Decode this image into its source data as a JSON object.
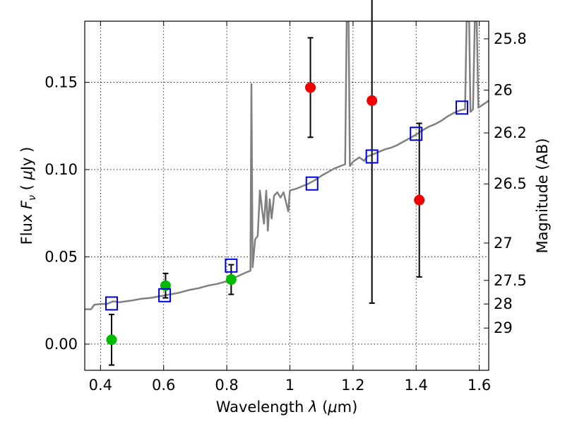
{
  "chart_data": {
    "type": "scatter",
    "xlabel": "Wavelength  λ (μm)",
    "ylabel": "Flux  F_ν  ( μJy )",
    "ylabel_parts": {
      "prefix": "Flux  ",
      "symbol": "F",
      "subscript": "ν",
      "open": "  ( ",
      "mu": "μ",
      "unit": "Jy )"
    },
    "xlabel_parts": {
      "prefix": "Wavelength  ",
      "symbol": "λ",
      "open": " (",
      "mu": "μ",
      "unit": "m)"
    },
    "right_ylabel": "Magnitude (AB)",
    "xlim": [
      0.35,
      1.63
    ],
    "ylim": [
      -0.015,
      0.185
    ],
    "grid": true,
    "x_ticks": [
      {
        "value": 0.4,
        "label": "0.4"
      },
      {
        "value": 0.6,
        "label": "0.6"
      },
      {
        "value": 0.8,
        "label": "0.8"
      },
      {
        "value": 1.0,
        "label": "1"
      },
      {
        "value": 1.2,
        "label": "1.2"
      },
      {
        "value": 1.4,
        "label": "1.4"
      },
      {
        "value": 1.6,
        "label": "1.6"
      }
    ],
    "y_ticks": [
      {
        "value": 0.0,
        "label": "0.00"
      },
      {
        "value": 0.05,
        "label": "0.05"
      },
      {
        "value": 0.1,
        "label": "0.10"
      },
      {
        "value": 0.15,
        "label": "0.15"
      }
    ],
    "right_ticks": [
      {
        "label": "25.8",
        "flux": 0.1749
      },
      {
        "label": "26",
        "flux": 0.1455
      },
      {
        "label": "26.2",
        "flux": 0.121
      },
      {
        "label": "26.5",
        "flux": 0.0918
      },
      {
        "label": "27",
        "flux": 0.0579
      },
      {
        "label": "27.5",
        "flux": 0.0365
      },
      {
        "label": "28",
        "flux": 0.023
      },
      {
        "label": "29",
        "flux": 0.0092
      }
    ],
    "series": [
      {
        "kind": "detections",
        "color": "#00bb00",
        "points": [
          {
            "x": 0.435,
            "y": 0.0025,
            "err": 0.0145
          },
          {
            "x": 0.606,
            "y": 0.0335,
            "err": 0.007
          },
          {
            "x": 0.814,
            "y": 0.037,
            "err": 0.0085
          }
        ]
      },
      {
        "kind": "non-detections",
        "color": "#ee0000",
        "points": [
          {
            "x": 1.065,
            "y": 0.147,
            "err": 0.0285
          },
          {
            "x": 1.26,
            "y": 0.1395,
            "err": 0.116
          },
          {
            "x": 1.41,
            "y": 0.0825,
            "err": 0.044
          }
        ]
      },
      {
        "kind": "model-photometry",
        "color": "#0000dd",
        "points": [
          {
            "x": 0.435,
            "y": 0.0233
          },
          {
            "x": 0.603,
            "y": 0.028
          },
          {
            "x": 0.814,
            "y": 0.045
          },
          {
            "x": 1.07,
            "y": 0.092
          },
          {
            "x": 1.26,
            "y": 0.1075
          },
          {
            "x": 1.4,
            "y": 0.1205
          },
          {
            "x": 1.545,
            "y": 0.1355
          }
        ]
      }
    ],
    "model_spectrum": {
      "color": "#808080",
      "points": [
        [
          0.35,
          0.02
        ],
        [
          0.37,
          0.02
        ],
        [
          0.38,
          0.0225
        ],
        [
          0.4,
          0.023
        ],
        [
          0.42,
          0.023
        ],
        [
          0.44,
          0.0245
        ],
        [
          0.46,
          0.024
        ],
        [
          0.48,
          0.0245
        ],
        [
          0.5,
          0.025
        ],
        [
          0.53,
          0.026
        ],
        [
          0.56,
          0.0265
        ],
        [
          0.59,
          0.0275
        ],
        [
          0.62,
          0.0285
        ],
        [
          0.65,
          0.0295
        ],
        [
          0.68,
          0.031
        ],
        [
          0.71,
          0.032
        ],
        [
          0.74,
          0.0335
        ],
        [
          0.77,
          0.0345
        ],
        [
          0.8,
          0.036
        ],
        [
          0.83,
          0.0385
        ],
        [
          0.86,
          0.041
        ],
        [
          0.875,
          0.042
        ],
        [
          0.878,
          0.149
        ],
        [
          0.882,
          0.044
        ],
        [
          0.89,
          0.06
        ],
        [
          0.898,
          0.062
        ],
        [
          0.905,
          0.088
        ],
        [
          0.912,
          0.077
        ],
        [
          0.918,
          0.069
        ],
        [
          0.925,
          0.088
        ],
        [
          0.93,
          0.065
        ],
        [
          0.936,
          0.083
        ],
        [
          0.942,
          0.072
        ],
        [
          0.95,
          0.085
        ],
        [
          0.96,
          0.087
        ],
        [
          0.97,
          0.084
        ],
        [
          0.98,
          0.087
        ],
        [
          0.995,
          0.076
        ],
        [
          1.0,
          0.088
        ],
        [
          1.02,
          0.089
        ],
        [
          1.04,
          0.0905
        ],
        [
          1.06,
          0.092
        ],
        [
          1.08,
          0.094
        ],
        [
          1.1,
          0.0965
        ],
        [
          1.12,
          0.0985
        ],
        [
          1.14,
          0.1005
        ],
        [
          1.16,
          0.102
        ],
        [
          1.175,
          0.103
        ],
        [
          1.18,
          0.185
        ],
        [
          1.186,
          0.185
        ],
        [
          1.19,
          0.102
        ],
        [
          1.2,
          0.1045
        ],
        [
          1.22,
          0.107
        ],
        [
          1.235,
          0.105
        ],
        [
          1.245,
          0.1075
        ],
        [
          1.26,
          0.1085
        ],
        [
          1.28,
          0.11
        ],
        [
          1.3,
          0.1115
        ],
        [
          1.32,
          0.1125
        ],
        [
          1.34,
          0.114
        ],
        [
          1.36,
          0.116
        ],
        [
          1.38,
          0.118
        ],
        [
          1.4,
          0.12
        ],
        [
          1.42,
          0.1225
        ],
        [
          1.44,
          0.1245
        ],
        [
          1.46,
          0.126
        ],
        [
          1.48,
          0.128
        ],
        [
          1.5,
          0.1305
        ],
        [
          1.52,
          0.1325
        ],
        [
          1.54,
          0.134
        ],
        [
          1.555,
          0.1345
        ],
        [
          1.56,
          0.185
        ],
        [
          1.568,
          0.185
        ],
        [
          1.572,
          0.133
        ],
        [
          1.58,
          0.1345
        ],
        [
          1.586,
          0.185
        ],
        [
          1.592,
          0.185
        ],
        [
          1.597,
          0.1355
        ],
        [
          1.61,
          0.137
        ],
        [
          1.63,
          0.1395
        ]
      ]
    }
  }
}
